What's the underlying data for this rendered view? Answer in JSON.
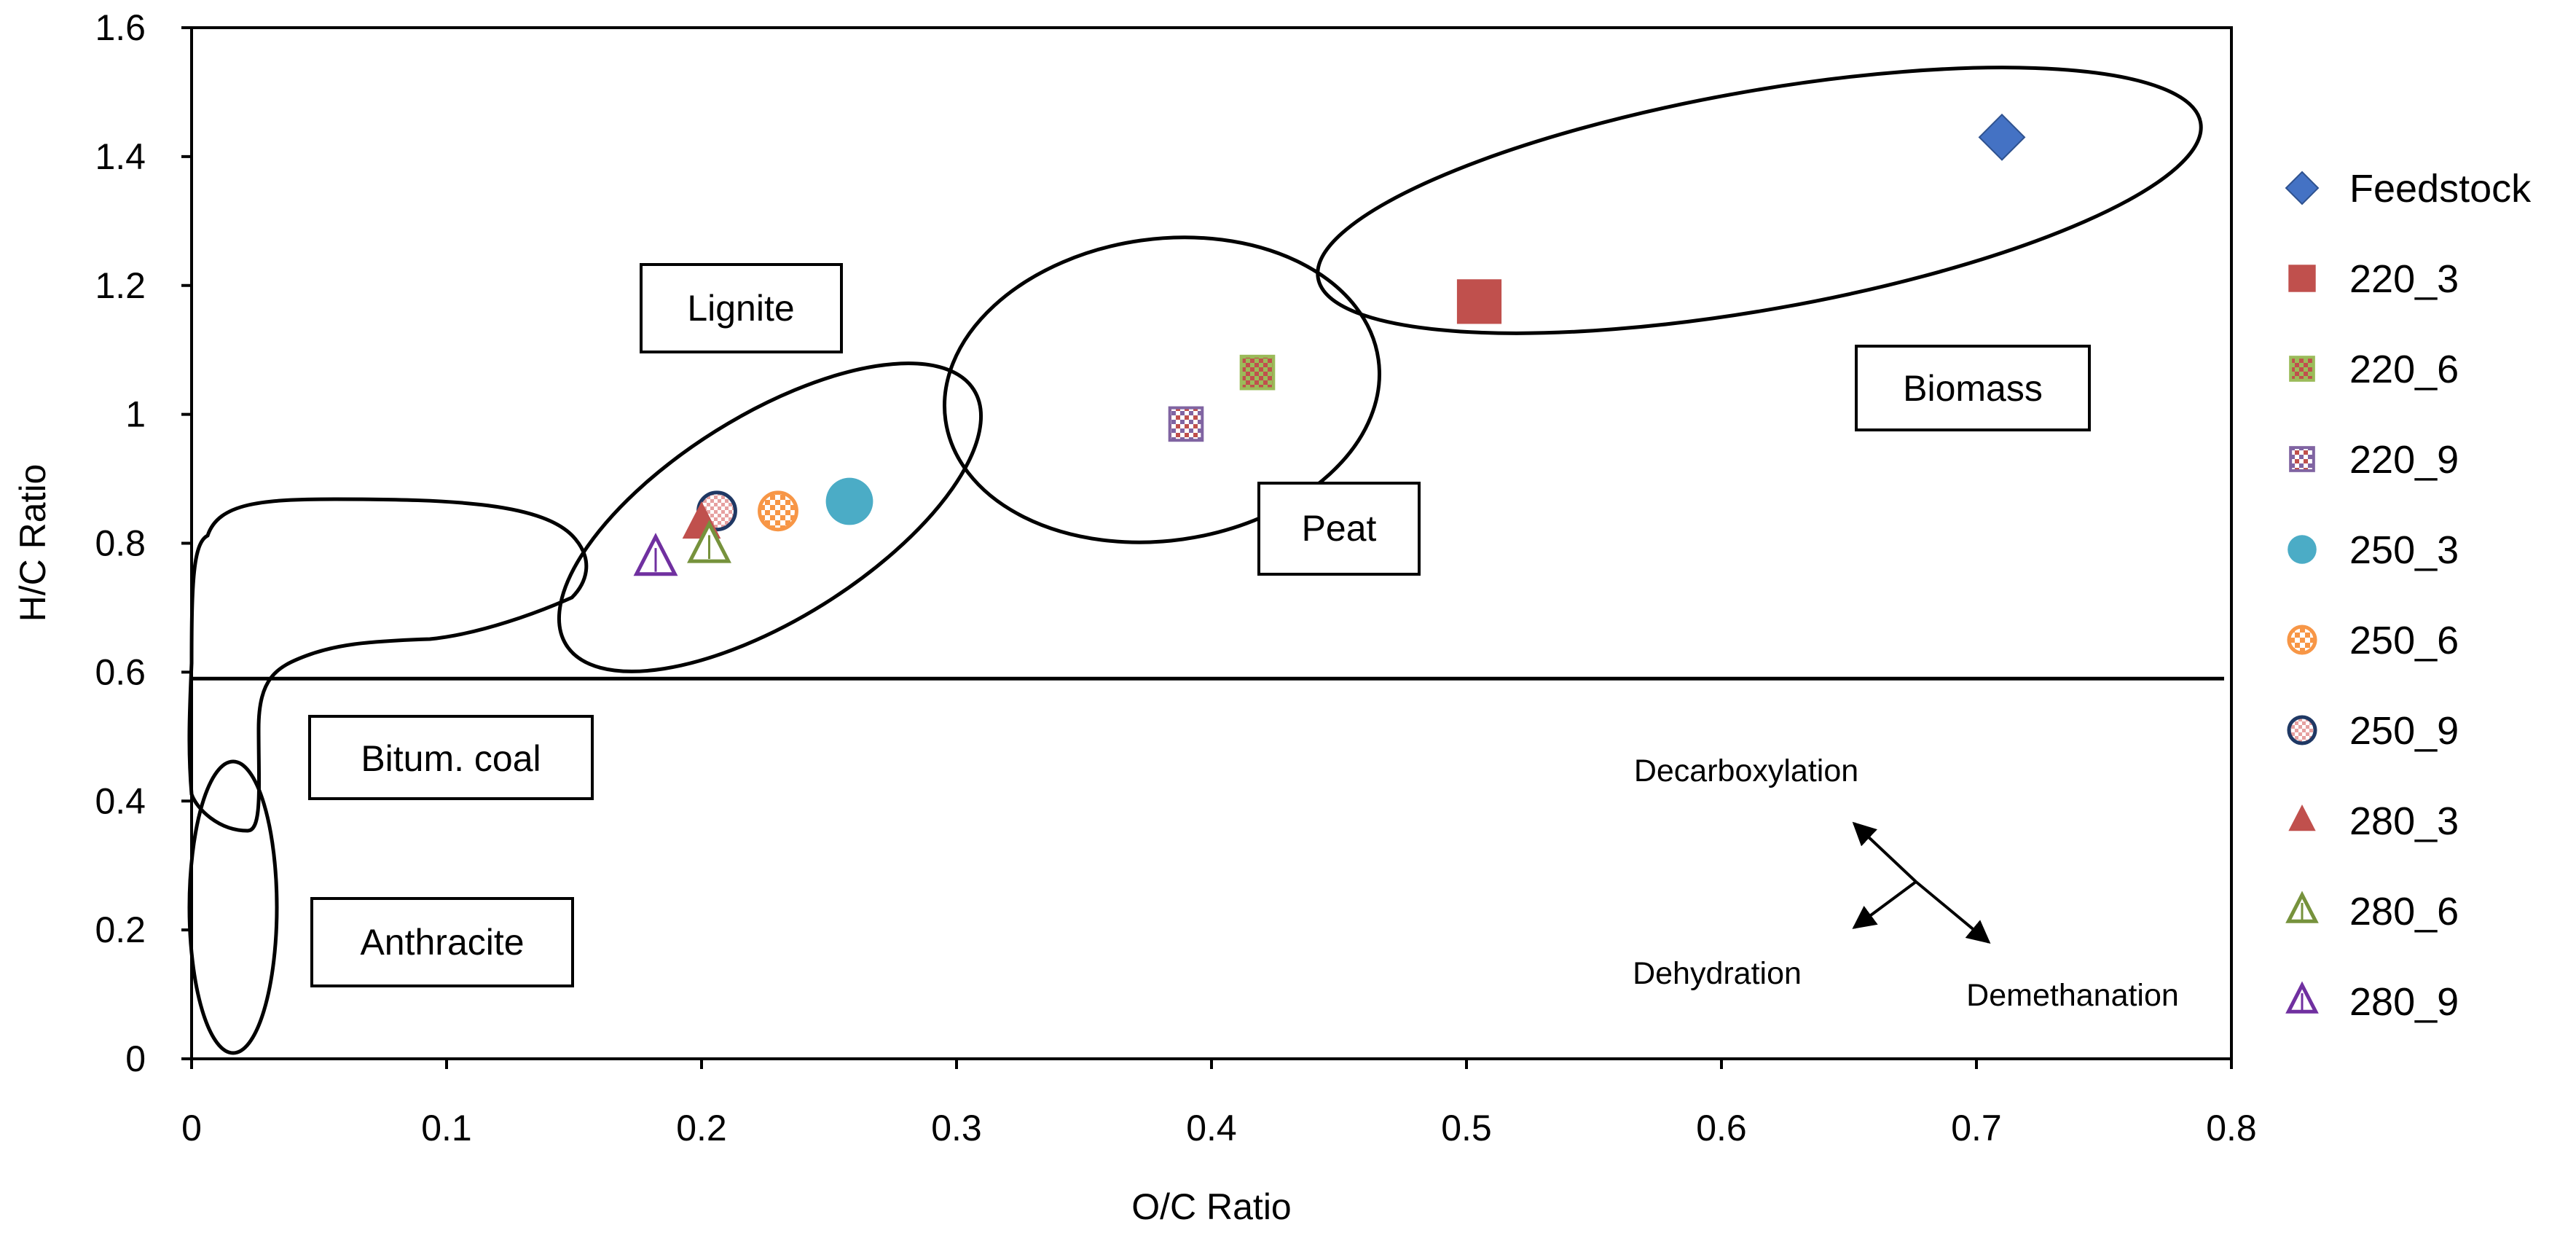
{
  "chart_data": {
    "type": "scatter",
    "title": "",
    "xlabel": "O/C Ratio",
    "ylabel": "H/C Ratio",
    "xlim": [
      0,
      0.8
    ],
    "ylim": [
      0,
      1.6
    ],
    "xticks": [
      "0",
      "0.1",
      "0.2",
      "0.3",
      "0.4",
      "0.5",
      "0.6",
      "0.7",
      "0.8"
    ],
    "yticks": [
      "0",
      "0.2",
      "0.4",
      "0.6",
      "0.8",
      "1",
      "1.2",
      "1.4",
      "1.6"
    ],
    "grid": false,
    "legend_position": "right",
    "series": [
      {
        "name": "Feedstock",
        "x": 0.71,
        "y": 1.43,
        "marker": "diamond",
        "color": "#4472C4"
      },
      {
        "name": "220_3",
        "x": 0.505,
        "y": 1.175,
        "marker": "square",
        "color": "#C0504D"
      },
      {
        "name": "220_6",
        "x": 0.418,
        "y": 1.065,
        "marker": "square-pattern",
        "color": "#9BBB59"
      },
      {
        "name": "220_9",
        "x": 0.39,
        "y": 0.985,
        "marker": "square-pattern",
        "color": "#8064A2"
      },
      {
        "name": "250_3",
        "x": 0.258,
        "y": 0.865,
        "marker": "circle",
        "color": "#4BACC6"
      },
      {
        "name": "250_6",
        "x": 0.23,
        "y": 0.85,
        "marker": "circle-pattern",
        "color": "#F79646"
      },
      {
        "name": "250_9",
        "x": 0.206,
        "y": 0.85,
        "marker": "circle-pattern",
        "color": "#1F3864"
      },
      {
        "name": "280_3",
        "x": 0.2,
        "y": 0.83,
        "marker": "triangle",
        "color": "#C0504D"
      },
      {
        "name": "280_6",
        "x": 0.203,
        "y": 0.795,
        "marker": "triangle-open",
        "color": "#76923C"
      },
      {
        "name": "280_9",
        "x": 0.182,
        "y": 0.775,
        "marker": "triangle-open",
        "color": "#7030A0"
      }
    ],
    "annotations": {
      "regions": [
        "Lignite",
        "Peat",
        "Biomass",
        "Bitum. coal",
        "Anthracite"
      ],
      "mechanisms": [
        "Decarboxylation",
        "Dehydration",
        "Demethanation"
      ],
      "reference_line_y": 0.59
    }
  }
}
